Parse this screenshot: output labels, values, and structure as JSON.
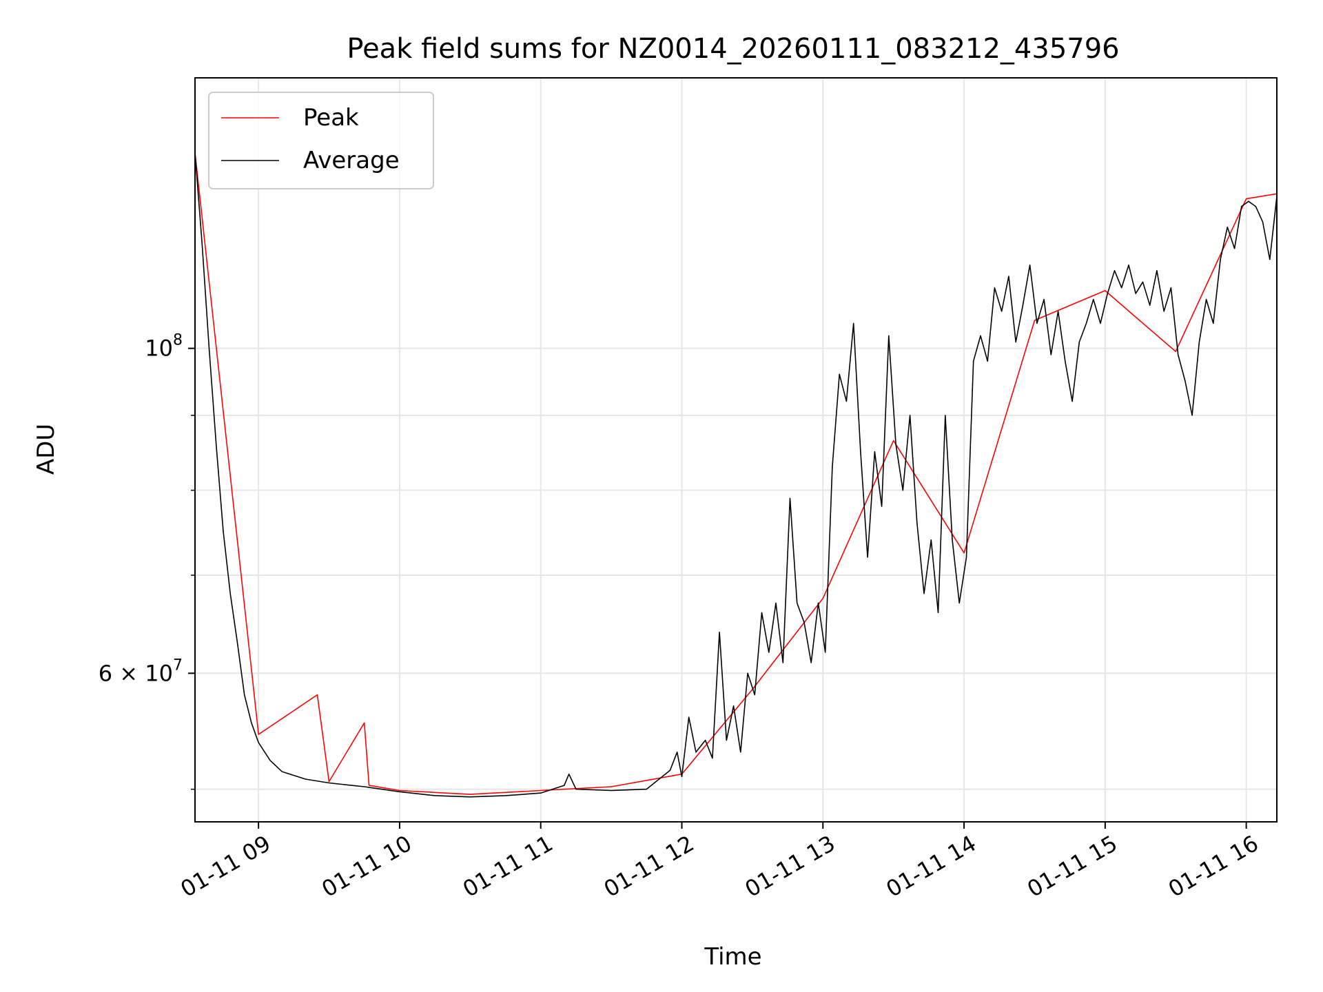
{
  "chart_data": {
    "type": "line",
    "title": "Peak field sums for NZ0014_20260111_083212_435796",
    "xlabel": "Time",
    "ylabel": "ADU",
    "y_scale": "log",
    "xlim": [
      "2026-01-11 08:33",
      "2026-01-11 16:13"
    ],
    "ylim": [
      47500000,
      153000000
    ],
    "x_ticks": [
      "01-11 09",
      "01-11 10",
      "01-11 11",
      "01-11 12",
      "01-11 13",
      "01-11 14",
      "01-11 15",
      "01-11 16"
    ],
    "y_tick_labels": [
      {
        "base": "10",
        "exp": "8",
        "value": 100000000
      },
      {
        "base": "6 × 10",
        "exp": "7",
        "value": 60000000
      }
    ],
    "y_minor_ticks": [
      50000000,
      70000000,
      80000000,
      90000000
    ],
    "grid": true,
    "legend": {
      "placement": "upper-left",
      "entries": [
        "Peak",
        "Average"
      ]
    },
    "colors": {
      "peak": "#ff0000",
      "average": "#000000",
      "grid": "#e6e6e6"
    },
    "series": [
      {
        "name": "Average",
        "points": [
          [
            "2026-01-11 08:33",
            136000000
          ],
          [
            "2026-01-11 08:36",
            118000000
          ],
          [
            "2026-01-11 08:39",
            100000000
          ],
          [
            "2026-01-11 08:42",
            86000000
          ],
          [
            "2026-01-11 08:45",
            75000000
          ],
          [
            "2026-01-11 08:48",
            68000000
          ],
          [
            "2026-01-11 08:51",
            63000000
          ],
          [
            "2026-01-11 08:54",
            58000000
          ],
          [
            "2026-01-11 08:57",
            55500000
          ],
          [
            "2026-01-11 09:00",
            53800000
          ],
          [
            "2026-01-11 09:05",
            52300000
          ],
          [
            "2026-01-11 09:10",
            51400000
          ],
          [
            "2026-01-11 09:20",
            50800000
          ],
          [
            "2026-01-11 09:30",
            50500000
          ],
          [
            "2026-01-11 09:45",
            50200000
          ],
          [
            "2026-01-11 10:00",
            49800000
          ],
          [
            "2026-01-11 10:15",
            49500000
          ],
          [
            "2026-01-11 10:30",
            49400000
          ],
          [
            "2026-01-11 10:45",
            49500000
          ],
          [
            "2026-01-11 11:00",
            49700000
          ],
          [
            "2026-01-11 11:10",
            50300000
          ],
          [
            "2026-01-11 11:12",
            51200000
          ],
          [
            "2026-01-11 11:15",
            50000000
          ],
          [
            "2026-01-11 11:30",
            49900000
          ],
          [
            "2026-01-11 11:45",
            50000000
          ],
          [
            "2026-01-11 11:55",
            51500000
          ],
          [
            "2026-01-11 11:58",
            53000000
          ],
          [
            "2026-01-11 12:00",
            51000000
          ],
          [
            "2026-01-11 12:03",
            56000000
          ],
          [
            "2026-01-11 12:06",
            53000000
          ],
          [
            "2026-01-11 12:10",
            54000000
          ],
          [
            "2026-01-11 12:13",
            52500000
          ],
          [
            "2026-01-11 12:16",
            64000000
          ],
          [
            "2026-01-11 12:19",
            54000000
          ],
          [
            "2026-01-11 12:22",
            57000000
          ],
          [
            "2026-01-11 12:25",
            53000000
          ],
          [
            "2026-01-11 12:28",
            60000000
          ],
          [
            "2026-01-11 12:31",
            58000000
          ],
          [
            "2026-01-11 12:34",
            66000000
          ],
          [
            "2026-01-11 12:37",
            62000000
          ],
          [
            "2026-01-11 12:40",
            67000000
          ],
          [
            "2026-01-11 12:43",
            61000000
          ],
          [
            "2026-01-11 12:46",
            79000000
          ],
          [
            "2026-01-11 12:49",
            67000000
          ],
          [
            "2026-01-11 12:52",
            65000000
          ],
          [
            "2026-01-11 12:55",
            61000000
          ],
          [
            "2026-01-11 12:58",
            67000000
          ],
          [
            "2026-01-11 13:01",
            62000000
          ],
          [
            "2026-01-11 13:04",
            83000000
          ],
          [
            "2026-01-11 13:07",
            96000000
          ],
          [
            "2026-01-11 13:10",
            92000000
          ],
          [
            "2026-01-11 13:13",
            104000000
          ],
          [
            "2026-01-11 13:16",
            85000000
          ],
          [
            "2026-01-11 13:19",
            72000000
          ],
          [
            "2026-01-11 13:22",
            85000000
          ],
          [
            "2026-01-11 13:25",
            78000000
          ],
          [
            "2026-01-11 13:28",
            102000000
          ],
          [
            "2026-01-11 13:31",
            86000000
          ],
          [
            "2026-01-11 13:34",
            80000000
          ],
          [
            "2026-01-11 13:37",
            90000000
          ],
          [
            "2026-01-11 13:40",
            76000000
          ],
          [
            "2026-01-11 13:43",
            68000000
          ],
          [
            "2026-01-11 13:46",
            74000000
          ],
          [
            "2026-01-11 13:49",
            66000000
          ],
          [
            "2026-01-11 13:52",
            90000000
          ],
          [
            "2026-01-11 13:55",
            74000000
          ],
          [
            "2026-01-11 13:58",
            67000000
          ],
          [
            "2026-01-11 14:01",
            72000000
          ],
          [
            "2026-01-11 14:04",
            98000000
          ],
          [
            "2026-01-11 14:07",
            102000000
          ],
          [
            "2026-01-11 14:10",
            98000000
          ],
          [
            "2026-01-11 14:13",
            110000000
          ],
          [
            "2026-01-11 14:16",
            106000000
          ],
          [
            "2026-01-11 14:19",
            112000000
          ],
          [
            "2026-01-11 14:22",
            101000000
          ],
          [
            "2026-01-11 14:25",
            107000000
          ],
          [
            "2026-01-11 14:28",
            114000000
          ],
          [
            "2026-01-11 14:31",
            104000000
          ],
          [
            "2026-01-11 14:34",
            108000000
          ],
          [
            "2026-01-11 14:37",
            99000000
          ],
          [
            "2026-01-11 14:40",
            106000000
          ],
          [
            "2026-01-11 14:43",
            98000000
          ],
          [
            "2026-01-11 14:46",
            92000000
          ],
          [
            "2026-01-11 14:49",
            101000000
          ],
          [
            "2026-01-11 14:52",
            104000000
          ],
          [
            "2026-01-11 14:55",
            108000000
          ],
          [
            "2026-01-11 14:58",
            104000000
          ],
          [
            "2026-01-11 15:01",
            109000000
          ],
          [
            "2026-01-11 15:04",
            113000000
          ],
          [
            "2026-01-11 15:07",
            110000000
          ],
          [
            "2026-01-11 15:10",
            114000000
          ],
          [
            "2026-01-11 15:13",
            109000000
          ],
          [
            "2026-01-11 15:16",
            111000000
          ],
          [
            "2026-01-11 15:19",
            107000000
          ],
          [
            "2026-01-11 15:22",
            113000000
          ],
          [
            "2026-01-11 15:25",
            106000000
          ],
          [
            "2026-01-11 15:28",
            110000000
          ],
          [
            "2026-01-11 15:31",
            99000000
          ],
          [
            "2026-01-11 15:34",
            95000000
          ],
          [
            "2026-01-11 15:37",
            90000000
          ],
          [
            "2026-01-11 15:40",
            101000000
          ],
          [
            "2026-01-11 15:43",
            108000000
          ],
          [
            "2026-01-11 15:46",
            104000000
          ],
          [
            "2026-01-11 15:49",
            115000000
          ],
          [
            "2026-01-11 15:52",
            121000000
          ],
          [
            "2026-01-11 15:55",
            117000000
          ],
          [
            "2026-01-11 15:58",
            125000000
          ],
          [
            "2026-01-11 16:01",
            126000000
          ],
          [
            "2026-01-11 16:04",
            125000000
          ],
          [
            "2026-01-11 16:07",
            122000000
          ],
          [
            "2026-01-11 16:10",
            115000000
          ],
          [
            "2026-01-11 16:13",
            127000000
          ]
        ]
      },
      {
        "name": "Peak",
        "points": [
          [
            "2026-01-11 08:33",
            136000000
          ],
          [
            "2026-01-11 09:00",
            54500000
          ],
          [
            "2026-01-11 09:25",
            58000000
          ],
          [
            "2026-01-11 09:30",
            50600000
          ],
          [
            "2026-01-11 09:45",
            55500000
          ],
          [
            "2026-01-11 09:47",
            50300000
          ],
          [
            "2026-01-11 10:00",
            49900000
          ],
          [
            "2026-01-11 10:30",
            49600000
          ],
          [
            "2026-01-11 11:00",
            49900000
          ],
          [
            "2026-01-11 11:30",
            50200000
          ],
          [
            "2026-01-11 12:00",
            51200000
          ],
          [
            "2026-01-11 12:30",
            58500000
          ],
          [
            "2026-01-11 13:00",
            67500000
          ],
          [
            "2026-01-11 13:30",
            86500000
          ],
          [
            "2026-01-11 14:00",
            72500000
          ],
          [
            "2026-01-11 14:30",
            104500000
          ],
          [
            "2026-01-11 15:00",
            109500000
          ],
          [
            "2026-01-11 15:30",
            99500000
          ],
          [
            "2026-01-11 16:00",
            126500000
          ],
          [
            "2026-01-11 16:13",
            127500000
          ]
        ]
      }
    ]
  }
}
